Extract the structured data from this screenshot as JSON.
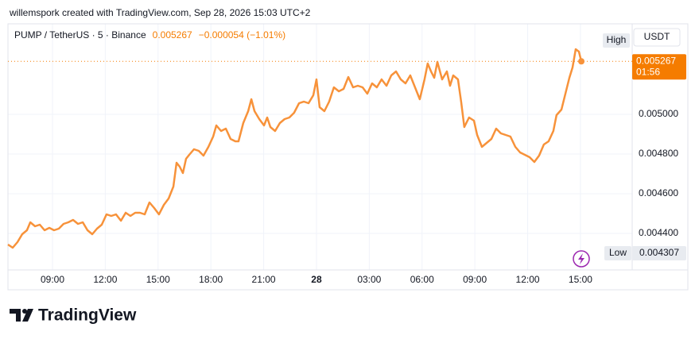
{
  "chart_data": {
    "type": "line",
    "header": "willemspork created with TradingView.com, Sep 28, 2026 15:03 UTC+2",
    "title": "PUMP / TetherUS · 5 · Binance",
    "last_price": 0.005267,
    "change": "−0.000054 (−1.01%)",
    "countdown": "01:56",
    "currency": "USDT",
    "high_label": "High",
    "low_label": "Low",
    "low_value": 0.004307,
    "brand": "TradingView",
    "color": "#f7923a",
    "change_color": "#f57c00",
    "grid": true,
    "xlim": [
      6.47,
      41.94
    ],
    "ylim": [
      0.004216,
      0.005456
    ],
    "xticks": [
      {
        "value": 9,
        "label": "09:00"
      },
      {
        "value": 12,
        "label": "12:00"
      },
      {
        "value": 15,
        "label": "15:00"
      },
      {
        "value": 18,
        "label": "18:00"
      },
      {
        "value": 21,
        "label": "21:00"
      },
      {
        "value": 24,
        "label": "28"
      },
      {
        "value": 27,
        "label": "03:00"
      },
      {
        "value": 30,
        "label": "06:00"
      },
      {
        "value": 33,
        "label": "09:00"
      },
      {
        "value": 36,
        "label": "12:00"
      },
      {
        "value": 39,
        "label": "15:00"
      }
    ],
    "yticks": [
      {
        "value": 0.0044,
        "label": "0.004400"
      },
      {
        "value": 0.0046,
        "label": "0.004600"
      },
      {
        "value": 0.0048,
        "label": "0.004800"
      },
      {
        "value": 0.005,
        "label": "0.005000"
      }
    ],
    "x": [
      6.47,
      6.74,
      7.01,
      7.28,
      7.55,
      7.74,
      8.01,
      8.28,
      8.55,
      8.82,
      9.09,
      9.36,
      9.63,
      9.9,
      10.17,
      10.45,
      10.72,
      10.99,
      11.26,
      11.53,
      11.8,
      12.07,
      12.34,
      12.61,
      12.89,
      13.16,
      13.43,
      13.7,
      13.97,
      14.24,
      14.51,
      14.78,
      15.05,
      15.33,
      15.6,
      15.87,
      16.05,
      16.23,
      16.41,
      16.59,
      16.77,
      17.04,
      17.31,
      17.58,
      17.86,
      18.13,
      18.31,
      18.58,
      18.85,
      19.12,
      19.39,
      19.57,
      19.84,
      20.12,
      20.3,
      20.48,
      20.75,
      21.02,
      21.2,
      21.38,
      21.65,
      21.92,
      22.19,
      22.46,
      22.73,
      23.01,
      23.28,
      23.55,
      23.82,
      24.0,
      24.18,
      24.45,
      24.72,
      24.99,
      25.27,
      25.54,
      25.81,
      26.08,
      26.35,
      26.62,
      26.89,
      27.16,
      27.43,
      27.7,
      27.98,
      28.25,
      28.52,
      28.79,
      29.06,
      29.33,
      29.6,
      29.87,
      30.14,
      30.32,
      30.51,
      30.69,
      30.87,
      31.14,
      31.41,
      31.59,
      31.77,
      32.04,
      32.22,
      32.4,
      32.67,
      32.95,
      33.13,
      33.4,
      33.67,
      33.94,
      34.21,
      34.48,
      34.75,
      35.02,
      35.3,
      35.57,
      35.84,
      36.11,
      36.38,
      36.65,
      36.92,
      37.19,
      37.46,
      37.64,
      37.92,
      38.1,
      38.37,
      38.55,
      38.73,
      38.91,
      39.05
    ],
    "values": [
      0.004344,
      0.004328,
      0.004356,
      0.004396,
      0.004416,
      0.004456,
      0.004436,
      0.004444,
      0.004416,
      0.004428,
      0.004416,
      0.004424,
      0.004448,
      0.004456,
      0.004468,
      0.004448,
      0.004456,
      0.004416,
      0.004396,
      0.004424,
      0.004444,
      0.004496,
      0.004488,
      0.004496,
      0.004464,
      0.004504,
      0.004488,
      0.004504,
      0.004504,
      0.004496,
      0.004556,
      0.004528,
      0.004496,
      0.004544,
      0.004576,
      0.004636,
      0.004756,
      0.004736,
      0.004704,
      0.004776,
      0.004796,
      0.004824,
      0.004816,
      0.004792,
      0.004836,
      0.004888,
      0.004944,
      0.004916,
      0.004928,
      0.004876,
      0.004864,
      0.004864,
      0.004956,
      0.005016,
      0.005076,
      0.005016,
      0.004976,
      0.004944,
      0.004984,
      0.004936,
      0.004916,
      0.004956,
      0.004976,
      0.004984,
      0.005008,
      0.005056,
      0.005064,
      0.005056,
      0.005096,
      0.005176,
      0.005036,
      0.005016,
      0.005064,
      0.005136,
      0.005116,
      0.005128,
      0.005188,
      0.005136,
      0.005144,
      0.005136,
      0.005104,
      0.005156,
      0.005136,
      0.005176,
      0.005144,
      0.005196,
      0.005216,
      0.005176,
      0.005156,
      0.005196,
      0.005136,
      0.005076,
      0.005176,
      0.005256,
      0.005216,
      0.005184,
      0.005264,
      0.005176,
      0.005216,
      0.005144,
      0.005196,
      0.005176,
      0.005064,
      0.004936,
      0.004984,
      0.004968,
      0.004896,
      0.004836,
      0.004856,
      0.004876,
      0.004928,
      0.004904,
      0.004896,
      0.004888,
      0.004836,
      0.004808,
      0.004796,
      0.004784,
      0.00476,
      0.004792,
      0.004848,
      0.004864,
      0.004916,
      0.004996,
      0.005024,
      0.005088,
      0.005184,
      0.005236,
      0.005328,
      0.005316,
      0.005267
    ]
  }
}
